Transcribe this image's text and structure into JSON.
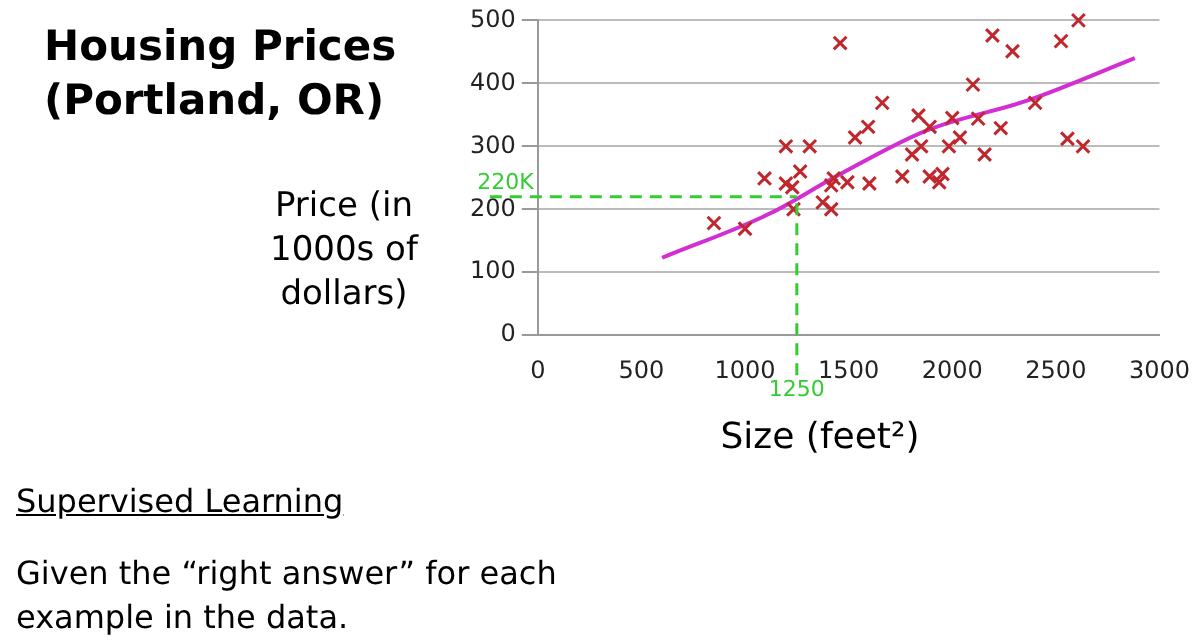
{
  "chart_data": {
    "type": "scatter",
    "title": "Housing Prices (Portland, OR)",
    "xlabel": "Size (feet²)",
    "ylabel": "Price (in 1000s of dollars)",
    "x": [
      850,
      1000,
      1094,
      1197,
      1197,
      1228,
      1234,
      1266,
      1312,
      1375,
      1416,
      1416,
      1428,
      1459,
      1494,
      1531,
      1594,
      1600,
      1662,
      1759,
      1806,
      1837,
      1850,
      1891,
      1891,
      1937,
      1953,
      1984,
      2000,
      2037,
      2100,
      2125,
      2156,
      2194,
      2234,
      2291,
      2400,
      2525,
      2556,
      2609,
      2631
    ],
    "series": [
      {
        "color": "#c0272d",
        "values": [
          178,
          169,
          249,
          300,
          241,
          235,
          200,
          260,
          300,
          211,
          200,
          238,
          249,
          464,
          243,
          314,
          331,
          241,
          369,
          252,
          287,
          349,
          300,
          331,
          252,
          243,
          256,
          300,
          345,
          314,
          398,
          344,
          287,
          476,
          329,
          451,
          369,
          467,
          312,
          500,
          300
        ]
      },
      {
        "type": "line",
        "color": "#d22ed2",
        "marker": "none",
        "x": [
          600,
          1125,
          1438,
          1875,
          2375,
          2881
        ],
        "values": [
          123,
          194,
          252,
          325,
          374,
          440
        ]
      }
    ],
    "xlim": [
      0,
      3000
    ],
    "xticks": [
      0,
      500,
      1000,
      1500,
      2000,
      2500,
      3000
    ],
    "ylim": [
      0,
      500
    ],
    "yticks": [
      0,
      100,
      200,
      300,
      400,
      500
    ],
    "grid": "y",
    "marker": "cross",
    "ref_lines": [
      {
        "axis": "y",
        "value": 220,
        "label": "220K",
        "color": "#33cc33",
        "line_style": "dashed"
      },
      {
        "axis": "x",
        "value": 1250,
        "label": "1250",
        "color": "#33cc33",
        "line_style": "dashed"
      }
    ],
    "annotations": [
      "Supervised Learning",
      "Given the “right answer” for each example in the data."
    ]
  }
}
